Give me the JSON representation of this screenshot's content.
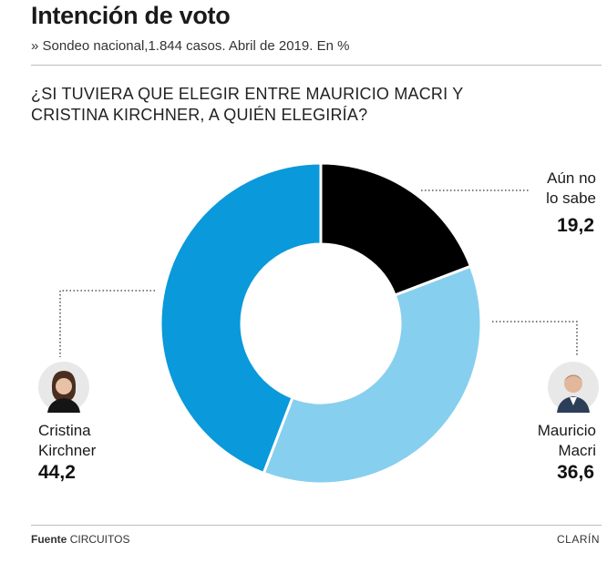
{
  "header": {
    "title": "Intención de voto",
    "subtitle": "» Sondeo nacional,1.844 casos. Abril de 2019. En %"
  },
  "question": "¿SI TUVIERA QUE ELEGIR ENTRE MAURICIO MACRI Y CRISTINA KIRCHNER, A QUIÉN ELEGIRÍA?",
  "chart_data": {
    "type": "pie",
    "donut": true,
    "slices": [
      {
        "label_line1": "Aún no",
        "label_line2": "lo sabe",
        "value": 19.2,
        "value_text": "19,2",
        "color": "#000000"
      },
      {
        "label_line1": "Mauricio",
        "label_line2": "Macri",
        "value": 36.6,
        "value_text": "36,6",
        "color": "#87cfee"
      },
      {
        "label_line1": "Cristina",
        "label_line2": "Kirchner",
        "value": 44.2,
        "value_text": "44,2",
        "color": "#0a99da"
      }
    ]
  },
  "footer": {
    "source_label": "Fuente",
    "source_value": "CIRCUITOS",
    "brand": "CLARÍN"
  }
}
